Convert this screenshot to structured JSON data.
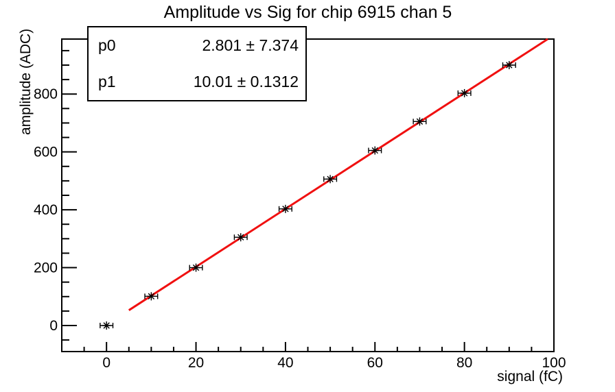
{
  "title": "Amplitude vs Sig for chip 6915 chan 5",
  "stats_box": {
    "rows": [
      {
        "param": "p0",
        "value": "2.801 ± 7.374"
      },
      {
        "param": "p1",
        "value": "10.01 ± 0.1312"
      }
    ]
  },
  "chart_data": {
    "type": "scatter",
    "title": "Amplitude vs Sig for chip 6915 chan 5",
    "xlabel": "signal (fC)",
    "ylabel": "amplitude (ADC)",
    "xlim": [
      -10,
      100
    ],
    "ylim": [
      -90,
      990
    ],
    "x_major_ticks": [
      0,
      20,
      40,
      60,
      80,
      100
    ],
    "x_minor_step": 5,
    "y_major_ticks": [
      0,
      200,
      400,
      600,
      800
    ],
    "y_minor_step": 50,
    "grid": false,
    "legend_position": "none",
    "marker": "asterisk-with-x-error-bars",
    "points": {
      "x": [
        0,
        10,
        20,
        30,
        40,
        50,
        60,
        70,
        80,
        90
      ],
      "y": [
        0,
        101,
        200,
        305,
        403,
        506,
        605,
        705,
        803,
        900
      ],
      "xerr": 1.2
    },
    "fit": {
      "p0": 2.801,
      "p1": 10.01,
      "x_range": [
        5,
        98.62
      ],
      "color": "#f01010"
    },
    "colors": {
      "axis": "#000000",
      "marker": "#000000",
      "background": "#ffffff"
    }
  }
}
